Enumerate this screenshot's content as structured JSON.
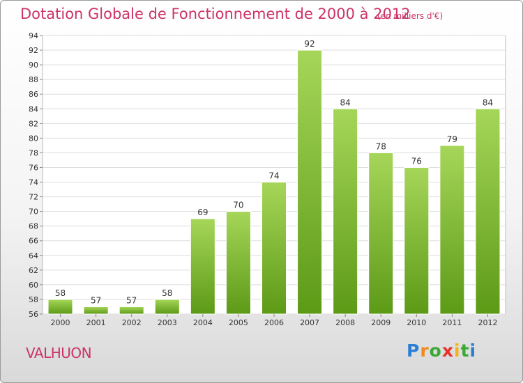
{
  "title": "Dotation Globale de Fonctionnement de 2000 à 2012",
  "subtitle": "(en milliers d'€)",
  "commune": "VALHUON",
  "logo": {
    "letters": [
      "P",
      "r",
      "o",
      "x",
      "i",
      "t",
      "i"
    ],
    "colors": [
      "#2a7fd4",
      "#f08a1c",
      "#3aa935",
      "#e8332a",
      "#f0b419",
      "#3aa935",
      "#2a7fd4"
    ]
  },
  "colors": {
    "bar_top": "#a6d659",
    "bar_bottom": "#5c9a16",
    "accent": "#cc3366"
  },
  "chart_data": {
    "type": "bar",
    "categories": [
      "2000",
      "2001",
      "2002",
      "2003",
      "2004",
      "2005",
      "2006",
      "2007",
      "2008",
      "2009",
      "2010",
      "2011",
      "2012"
    ],
    "values": [
      58,
      57,
      57,
      58,
      69,
      70,
      74,
      92,
      84,
      78,
      76,
      79,
      84
    ],
    "title": "Dotation Globale de Fonctionnement de 2000 à 2012",
    "xlabel": "",
    "ylabel": "",
    "ylim": [
      56,
      94
    ],
    "yticks": [
      56,
      58,
      60,
      62,
      64,
      66,
      68,
      70,
      72,
      74,
      76,
      78,
      80,
      82,
      84,
      86,
      88,
      90,
      92,
      94
    ],
    "grid": true,
    "data_labels": true
  }
}
